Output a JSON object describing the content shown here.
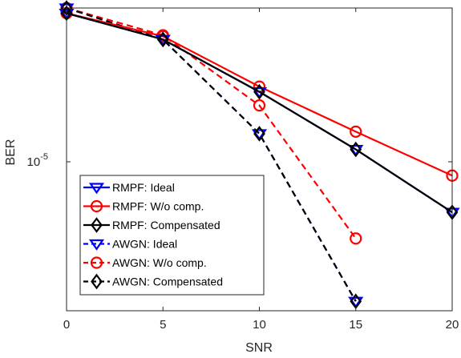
{
  "chart_data": {
    "type": "line",
    "xlabel": "SNR",
    "ylabel": "BER",
    "x_ticks": [
      "0",
      "5",
      "10",
      "15",
      "20"
    ],
    "y_tick_label": {
      "base": "10",
      "exponent": "-5"
    },
    "xlim": [
      0,
      20
    ],
    "ylog": true,
    "ylim_log10": [
      -6.44,
      -3.55
    ],
    "grid": false,
    "legend_position": "bottom-left",
    "x": [
      0,
      5,
      10,
      15,
      20
    ],
    "series": [
      {
        "name": "RMPF: Ideal",
        "color": "#0000ff",
        "dash": false,
        "marker": "triangle-down",
        "x": [
          0,
          5,
          10,
          15,
          20
        ],
        "log10_y": [
          -3.6,
          -3.85,
          -4.35,
          -4.9,
          -5.5
        ]
      },
      {
        "name": "RMPF: W/o comp.",
        "color": "#ff0000",
        "dash": false,
        "marker": "circle",
        "x": [
          0,
          5,
          10,
          15,
          20
        ],
        "log10_y": [
          -3.6,
          -3.82,
          -4.3,
          -4.73,
          -5.15
        ]
      },
      {
        "name": "RMPF: Compensated",
        "color": "#000000",
        "dash": false,
        "marker": "diamond",
        "x": [
          0,
          5,
          10,
          15,
          20
        ],
        "log10_y": [
          -3.6,
          -3.85,
          -4.35,
          -4.9,
          -5.5
        ]
      },
      {
        "name": "AWGN: Ideal",
        "color": "#0000ff",
        "dash": true,
        "marker": "triangle-down",
        "x": [
          0,
          5,
          10,
          15
        ],
        "log10_y": [
          -3.55,
          -3.85,
          -4.75,
          -6.35
        ]
      },
      {
        "name": "AWGN: W/o comp.",
        "color": "#ff0000",
        "dash": true,
        "marker": "circle",
        "x": [
          0,
          5,
          10,
          15
        ],
        "log10_y": [
          -3.55,
          -3.81,
          -4.48,
          -5.75
        ]
      },
      {
        "name": "AWGN: Compensated",
        "color": "#000000",
        "dash": true,
        "marker": "diamond",
        "x": [
          0,
          5,
          10,
          15
        ],
        "log10_y": [
          -3.55,
          -3.85,
          -4.75,
          -6.35
        ]
      }
    ]
  }
}
